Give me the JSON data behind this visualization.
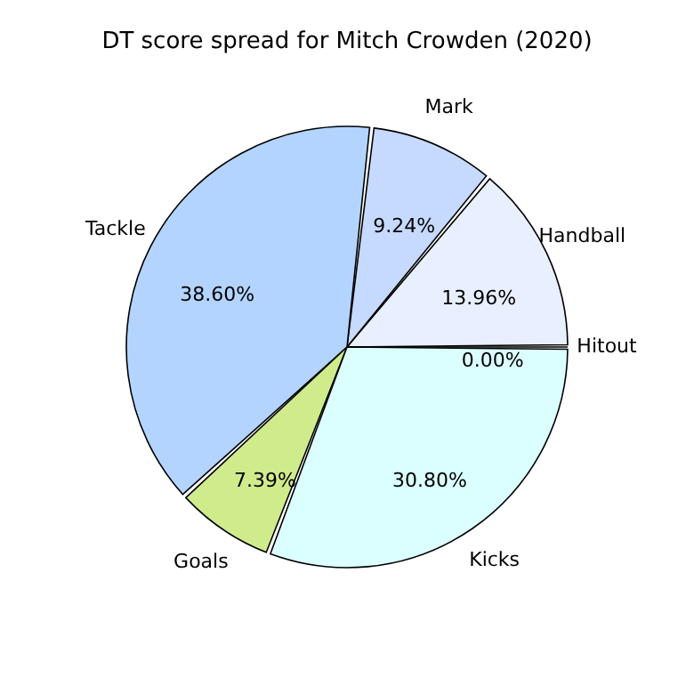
{
  "chart_data": {
    "type": "pie",
    "title": "DT score spread for Mitch Crowden (2020)",
    "categories": [
      "Handball",
      "Mark",
      "Tackle",
      "Goals",
      "Kicks",
      "Hitout"
    ],
    "values": [
      13.96,
      9.24,
      38.6,
      7.39,
      30.8,
      0.0
    ],
    "value_labels": [
      "13.96%",
      "9.24%",
      "38.60%",
      "7.39%",
      "30.80%",
      "0.00%"
    ],
    "colors": [
      "#e8f0ff",
      "#c6d9ff",
      "#b3d4ff",
      "#d0eb8c",
      "#dbffff",
      "#d8f0e0"
    ],
    "legend": false
  }
}
